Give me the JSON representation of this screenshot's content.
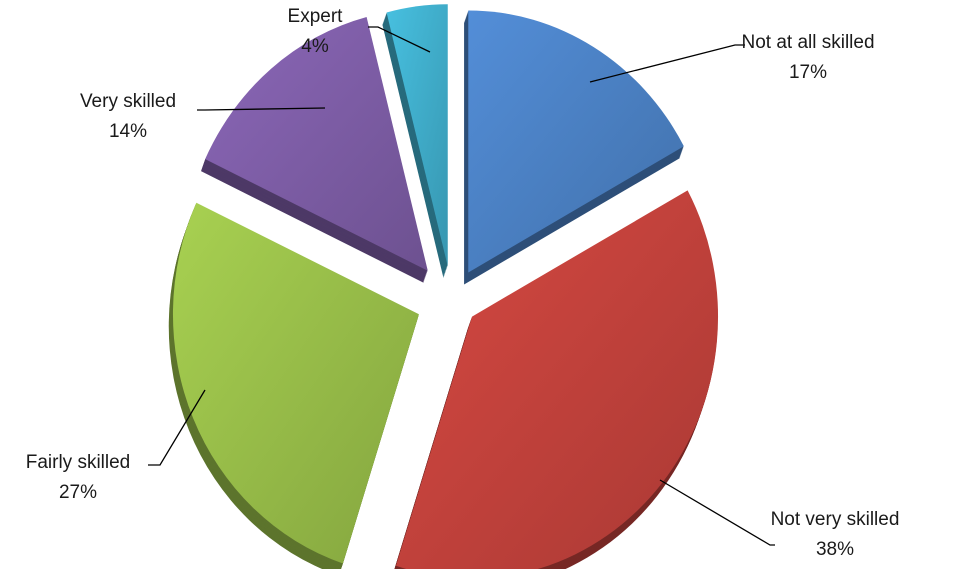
{
  "chart_data": {
    "type": "pie",
    "title": "",
    "style": "exploded 3D pie",
    "legend": "none",
    "unit": "%",
    "categories": [
      "Not at all skilled",
      "Not very skilled",
      "Fairly skilled",
      "Very skilled",
      "Expert"
    ],
    "values": [
      17,
      38,
      27,
      14,
      4
    ],
    "labels": [
      {
        "name": "Not at all skilled",
        "value_label": "17%"
      },
      {
        "name": "Not very skilled",
        "value_label": "38%"
      },
      {
        "name": "Fairly skilled",
        "value_label": "27%"
      },
      {
        "name": "Very skilled",
        "value_label": "14%"
      },
      {
        "name": "Expert",
        "value_label": "4%"
      }
    ],
    "colors": [
      "#4a7fc1",
      "#c0413b",
      "#96bb48",
      "#7c5ca4",
      "#3fabc8"
    ]
  }
}
